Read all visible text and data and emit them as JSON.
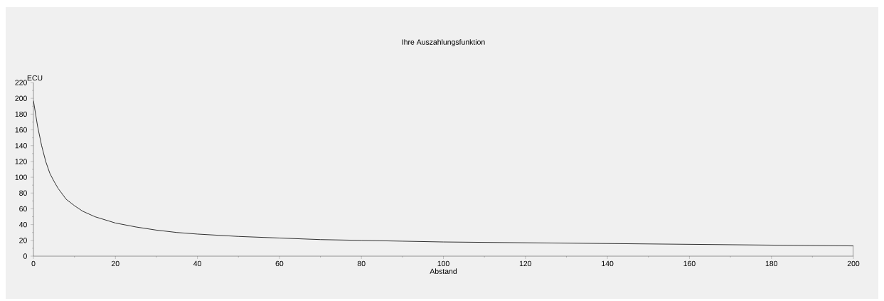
{
  "chart_data": {
    "type": "line",
    "title": "Ihre Auszahlungsfunktion",
    "xlabel": "Abstand",
    "ylabel": "ECU",
    "x": [
      0,
      1,
      2,
      3,
      4,
      5,
      6,
      8,
      10,
      12,
      15,
      20,
      25,
      30,
      35,
      40,
      50,
      60,
      70,
      80,
      90,
      100,
      120,
      140,
      160,
      180,
      200,
      200
    ],
    "series": [
      {
        "color": "#000000",
        "values": [
          197,
          165,
          140,
          120,
          105,
          95,
          86,
          72,
          64,
          57,
          50,
          42,
          37,
          33,
          30,
          28,
          25,
          23,
          21,
          20,
          19,
          18,
          17,
          16,
          15,
          14,
          13,
          0
        ]
      }
    ],
    "xlim": [
      0,
      200
    ],
    "ylim": [
      0,
      220
    ],
    "xticks": [
      0,
      20,
      40,
      60,
      80,
      100,
      120,
      140,
      160,
      180,
      200
    ],
    "yticks": [
      0,
      20,
      40,
      60,
      80,
      100,
      120,
      140,
      160,
      180,
      200,
      220
    ],
    "grid": false,
    "marker": "none",
    "line_style": "solid"
  }
}
